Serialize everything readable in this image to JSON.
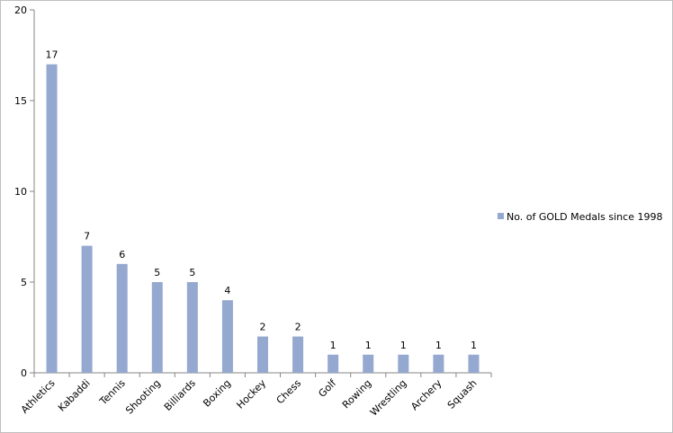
{
  "chart_data": {
    "type": "bar",
    "categories": [
      "Athletics",
      "Kabaddi",
      "Tennis",
      "Shooting",
      "Billiards",
      "Boxing",
      "Hockey",
      "Chess",
      "Golf",
      "Rowing",
      "Wrestling",
      "Archery",
      "Squash"
    ],
    "series": [
      {
        "name": "No. of GOLD Medals since 1998",
        "color": "#95a8d0",
        "values": [
          17,
          7,
          6,
          5,
          5,
          4,
          2,
          2,
          1,
          1,
          1,
          1,
          1
        ]
      }
    ],
    "ylim": [
      0,
      20
    ],
    "yticks": [
      0,
      5,
      10,
      15,
      20
    ],
    "grid": false,
    "legend": "right"
  }
}
